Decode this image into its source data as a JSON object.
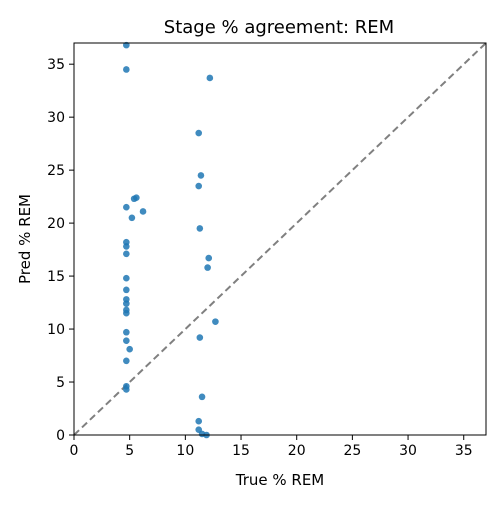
{
  "chart_data": {
    "type": "scatter",
    "title": "Stage % agreement: REM",
    "xlabel": "True % REM",
    "ylabel": "Pred % REM",
    "xlim": [
      0,
      37
    ],
    "ylim": [
      0,
      37
    ],
    "xticks": [
      0,
      5,
      10,
      15,
      20,
      25,
      30,
      35
    ],
    "yticks": [
      0,
      5,
      10,
      15,
      20,
      25,
      30,
      35
    ],
    "grid": false,
    "legend": "none",
    "point_color": "#1f77b4",
    "reference_line": {
      "style": "dashed",
      "color": "#808080",
      "from": [
        0,
        0
      ],
      "to": [
        37,
        37
      ]
    },
    "series": [
      {
        "points": [
          {
            "x": 4.7,
            "y": 36.8
          },
          {
            "x": 4.7,
            "y": 34.5
          },
          {
            "x": 4.7,
            "y": 21.5
          },
          {
            "x": 4.7,
            "y": 18.2
          },
          {
            "x": 4.7,
            "y": 17.8
          },
          {
            "x": 4.7,
            "y": 17.1
          },
          {
            "x": 4.7,
            "y": 14.8
          },
          {
            "x": 4.7,
            "y": 13.7
          },
          {
            "x": 4.7,
            "y": 12.8
          },
          {
            "x": 4.7,
            "y": 12.4
          },
          {
            "x": 4.7,
            "y": 11.8
          },
          {
            "x": 4.7,
            "y": 11.5
          },
          {
            "x": 4.7,
            "y": 9.7
          },
          {
            "x": 4.7,
            "y": 8.9
          },
          {
            "x": 4.7,
            "y": 7.0
          },
          {
            "x": 4.7,
            "y": 4.6
          },
          {
            "x": 4.7,
            "y": 4.3
          },
          {
            "x": 5.0,
            "y": 8.1
          },
          {
            "x": 5.2,
            "y": 20.5
          },
          {
            "x": 5.4,
            "y": 22.3
          },
          {
            "x": 5.6,
            "y": 22.4
          },
          {
            "x": 6.2,
            "y": 21.1
          },
          {
            "x": 11.2,
            "y": 28.5
          },
          {
            "x": 11.4,
            "y": 24.5
          },
          {
            "x": 11.2,
            "y": 23.5
          },
          {
            "x": 11.3,
            "y": 19.5
          },
          {
            "x": 11.3,
            "y": 9.2
          },
          {
            "x": 11.5,
            "y": 3.6
          },
          {
            "x": 11.2,
            "y": 1.3
          },
          {
            "x": 11.2,
            "y": 0.5
          },
          {
            "x": 11.5,
            "y": 0.1
          },
          {
            "x": 11.9,
            "y": 0.0
          },
          {
            "x": 12.2,
            "y": 33.7
          },
          {
            "x": 12.1,
            "y": 16.7
          },
          {
            "x": 12.0,
            "y": 15.8
          },
          {
            "x": 12.7,
            "y": 10.7
          }
        ]
      }
    ]
  }
}
